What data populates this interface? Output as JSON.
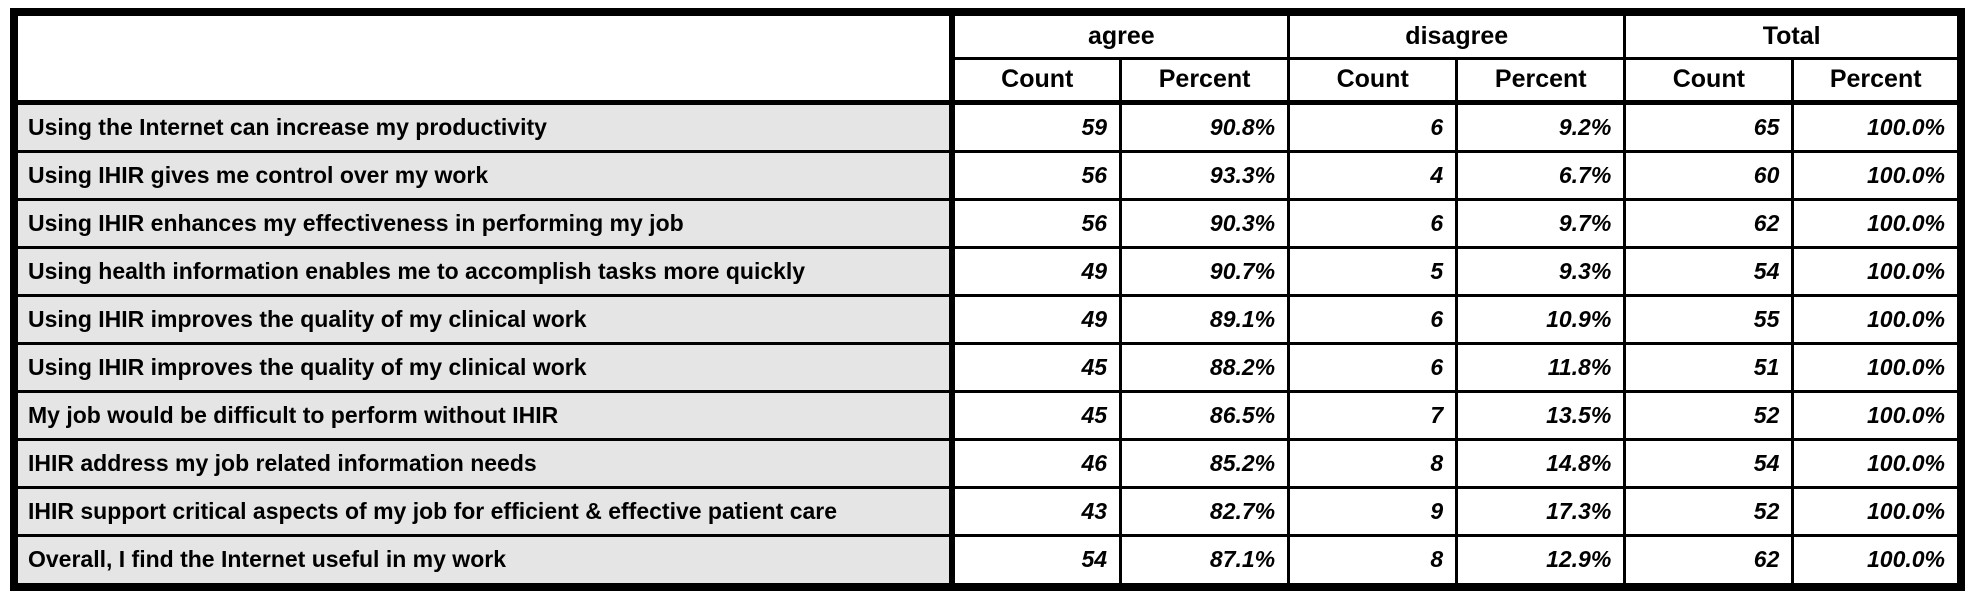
{
  "colors": {
    "border": "#000000",
    "row_label_background": "#e5e5e5",
    "cell_background": "#ffffff"
  },
  "chart_data": {
    "type": "table",
    "title": "",
    "column_groups": [
      {
        "label": "agree",
        "columns": [
          "Count",
          "Percent"
        ]
      },
      {
        "label": "disagree",
        "columns": [
          "Count",
          "Percent"
        ]
      },
      {
        "label": "Total",
        "columns": [
          "Count",
          "Percent"
        ]
      }
    ],
    "columns": [
      "",
      "agree Count",
      "agree Percent",
      "disagree Count",
      "disagree Percent",
      "Total Count",
      "Total Percent"
    ],
    "rows": [
      {
        "label": "Using the Internet can increase my productivity",
        "values": [
          "59",
          "90.8%",
          "6",
          "9.2%",
          "65",
          "100.0%"
        ]
      },
      {
        "label": "Using IHIR gives me control over my work",
        "values": [
          "56",
          "93.3%",
          "4",
          "6.7%",
          "60",
          "100.0%"
        ]
      },
      {
        "label": "Using IHIR enhances my effectiveness in performing my job",
        "values": [
          "56",
          "90.3%",
          "6",
          "9.7%",
          "62",
          "100.0%"
        ]
      },
      {
        "label": "Using health information enables me to accomplish tasks more quickly",
        "values": [
          "49",
          "90.7%",
          "5",
          "9.3%",
          "54",
          "100.0%"
        ]
      },
      {
        "label": "Using IHIR improves the quality of my clinical work",
        "values": [
          "49",
          "89.1%",
          "6",
          "10.9%",
          "55",
          "100.0%"
        ]
      },
      {
        "label": "Using IHIR improves the quality of my clinical work",
        "values": [
          "45",
          "88.2%",
          "6",
          "11.8%",
          "51",
          "100.0%"
        ]
      },
      {
        "label": "My job would be difficult to perform without IHIR",
        "values": [
          "45",
          "86.5%",
          "7",
          "13.5%",
          "52",
          "100.0%"
        ]
      },
      {
        "label": "IHIR address my job related information needs",
        "values": [
          "46",
          "85.2%",
          "8",
          "14.8%",
          "54",
          "100.0%"
        ]
      },
      {
        "label": "IHIR support critical aspects of my job for efficient & effective patient care",
        "values": [
          "43",
          "82.7%",
          "9",
          "17.3%",
          "52",
          "100.0%"
        ]
      },
      {
        "label": "Overall, I find the Internet useful in my work",
        "values": [
          "54",
          "87.1%",
          "8",
          "12.9%",
          "62",
          "100.0%"
        ]
      }
    ]
  }
}
